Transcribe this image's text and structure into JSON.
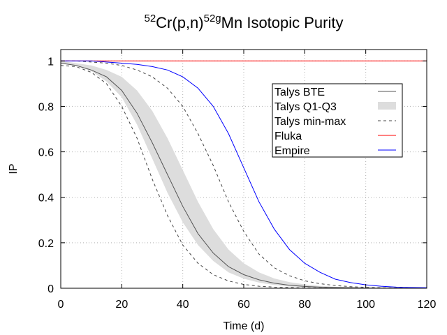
{
  "chart_data": {
    "type": "line",
    "title": {
      "pre_sup": "52",
      "reaction": "Cr(p,n)",
      "mid_sup": "52g",
      "post": "Mn Isotopic Purity",
      "full": "52Cr(p,n)52gMn Isotopic Purity"
    },
    "xlabel": "Time (d)",
    "ylabel": "IP",
    "xlim": [
      0,
      120
    ],
    "ylim": [
      0,
      1.05
    ],
    "xticks": [
      0,
      20,
      40,
      60,
      80,
      100,
      120
    ],
    "xtick_labels": [
      "0",
      "20",
      "40",
      "60",
      "80",
      "100",
      "120"
    ],
    "yticks": [
      0,
      0.2,
      0.4,
      0.6,
      0.8,
      1
    ],
    "ytick_labels": [
      "0",
      "0.2",
      "0.4",
      "0.6",
      "0.8",
      "1"
    ],
    "grid": true,
    "legend_position": "top-right",
    "x": [
      0,
      5,
      10,
      15,
      20,
      25,
      30,
      35,
      40,
      45,
      50,
      55,
      60,
      65,
      70,
      75,
      80,
      85,
      90,
      95,
      100,
      105,
      110,
      115,
      120
    ],
    "series": [
      {
        "name": "Talys BTE",
        "style": "solid",
        "color": "#555555",
        "values": [
          0.99,
          0.98,
          0.96,
          0.93,
          0.87,
          0.77,
          0.64,
          0.5,
          0.36,
          0.24,
          0.155,
          0.095,
          0.06,
          0.037,
          0.022,
          0.013,
          0.008,
          0.005,
          0.003,
          0.002,
          0.001,
          0.0005,
          0.0003,
          0.0001,
          0.0
        ]
      },
      {
        "name": "Talys Q1-Q3",
        "style": "band",
        "color": "#dddddd",
        "lower": [
          0.99,
          0.98,
          0.955,
          0.91,
          0.84,
          0.72,
          0.57,
          0.42,
          0.29,
          0.19,
          0.12,
          0.07,
          0.042,
          0.025,
          0.014,
          0.008,
          0.005,
          0.003,
          0.002,
          0.001,
          0.0005,
          0.0003,
          0.0001,
          0.0,
          0.0
        ],
        "upper": [
          1.0,
          0.99,
          0.98,
          0.96,
          0.93,
          0.87,
          0.78,
          0.66,
          0.52,
          0.38,
          0.26,
          0.17,
          0.11,
          0.07,
          0.043,
          0.027,
          0.017,
          0.01,
          0.006,
          0.004,
          0.002,
          0.001,
          0.0007,
          0.0004,
          0.0002
        ]
      },
      {
        "name": "Talys min-max",
        "style": "dashed",
        "color": "#444444",
        "lower": [
          0.98,
          0.975,
          0.95,
          0.9,
          0.8,
          0.66,
          0.48,
          0.32,
          0.19,
          0.11,
          0.06,
          0.032,
          0.017,
          0.009,
          0.005,
          0.003,
          0.0015,
          0.0008,
          0.0004,
          0.0002,
          0.0001,
          0.0,
          0.0,
          0.0,
          0.0
        ],
        "upper": [
          1.0,
          1.0,
          0.995,
          0.99,
          0.98,
          0.96,
          0.93,
          0.88,
          0.8,
          0.68,
          0.54,
          0.38,
          0.25,
          0.15,
          0.09,
          0.055,
          0.033,
          0.02,
          0.012,
          0.007,
          0.004,
          0.002,
          0.0012,
          0.0007,
          0.0004
        ]
      },
      {
        "name": "Fluka",
        "style": "solid",
        "color": "#ff0000",
        "values": [
          1,
          1,
          1,
          1,
          1,
          1,
          1,
          1,
          1,
          1,
          1,
          1,
          1,
          1,
          1,
          1,
          1,
          1,
          1,
          1,
          1,
          1,
          1,
          1,
          1
        ]
      },
      {
        "name": "Empire",
        "style": "solid",
        "color": "#0000ff",
        "values": [
          1.0,
          1.0,
          1.0,
          0.995,
          0.99,
          0.985,
          0.975,
          0.96,
          0.93,
          0.88,
          0.8,
          0.68,
          0.53,
          0.38,
          0.26,
          0.17,
          0.11,
          0.07,
          0.04,
          0.025,
          0.015,
          0.009,
          0.005,
          0.003,
          0.002
        ]
      }
    ]
  }
}
